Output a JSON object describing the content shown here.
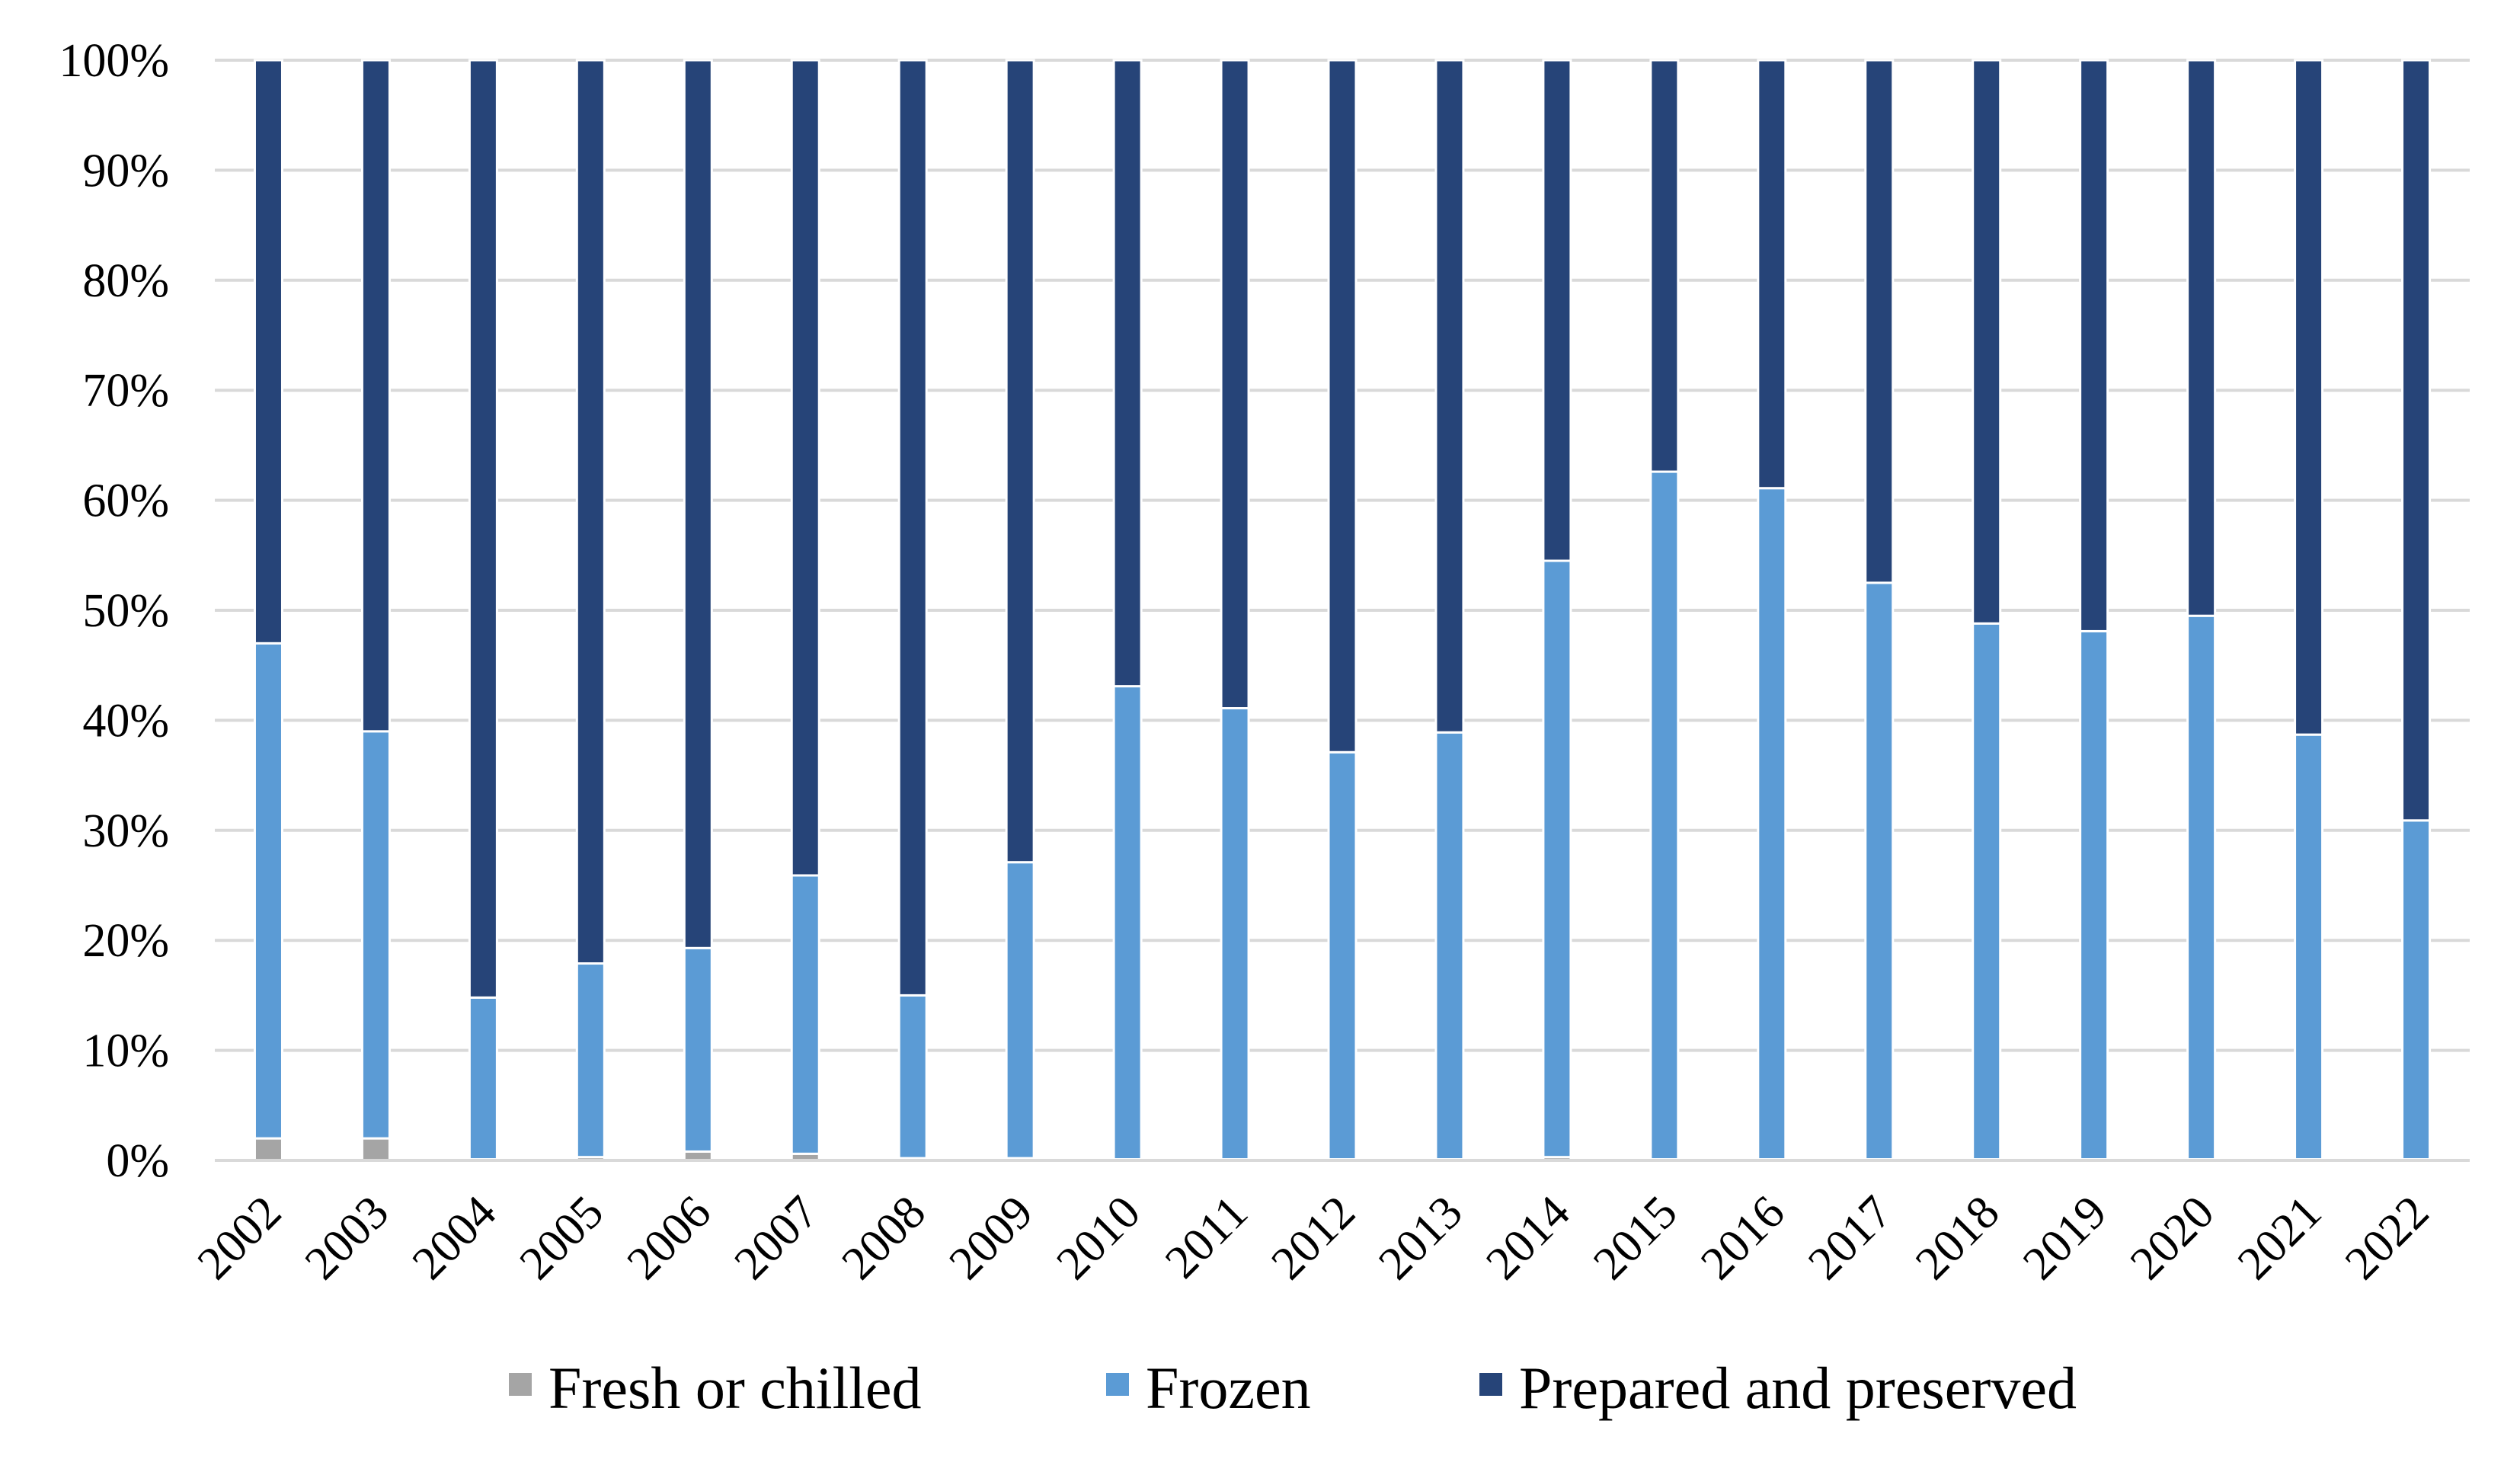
{
  "chart_data": {
    "type": "bar",
    "stacked": true,
    "percent": true,
    "title": "",
    "xlabel": "",
    "ylabel": "",
    "ylim": [
      0,
      100
    ],
    "yticks": [
      "0%",
      "10%",
      "20%",
      "30%",
      "40%",
      "50%",
      "60%",
      "70%",
      "80%",
      "90%",
      "100%"
    ],
    "grid": true,
    "legend_position": "bottom",
    "categories": [
      "2002",
      "2003",
      "2004",
      "2005",
      "2006",
      "2007",
      "2008",
      "2009",
      "2010",
      "2011",
      "2012",
      "2013",
      "2014",
      "2015",
      "2016",
      "2017",
      "2018",
      "2019",
      "2020",
      "2021",
      "2022"
    ],
    "series": [
      {
        "name": "Fresh or chilled",
        "color": "#a5a5a5",
        "values": [
          2.0,
          2.0,
          0.1,
          0.3,
          0.8,
          0.6,
          0.2,
          0.2,
          0.1,
          0.1,
          0.1,
          0.1,
          0.3,
          0.1,
          0.1,
          0.1,
          0.1,
          0.1,
          0.1,
          0.1,
          0.1
        ]
      },
      {
        "name": "Frozen",
        "color": "#5b9bd5",
        "values": [
          45.0,
          37.0,
          14.7,
          17.6,
          18.5,
          25.3,
          14.8,
          26.9,
          43.0,
          41.0,
          37.0,
          38.8,
          54.2,
          62.5,
          61.0,
          52.4,
          48.7,
          48.0,
          49.4,
          38.6,
          30.8
        ]
      },
      {
        "name": "Prepared and preserved",
        "color": "#264478",
        "values": [
          53.0,
          61.0,
          85.2,
          82.1,
          80.7,
          74.1,
          85.0,
          72.9,
          56.9,
          58.9,
          62.9,
          61.1,
          45.5,
          37.4,
          38.9,
          47.5,
          51.2,
          51.9,
          50.5,
          61.3,
          69.1
        ]
      }
    ]
  }
}
